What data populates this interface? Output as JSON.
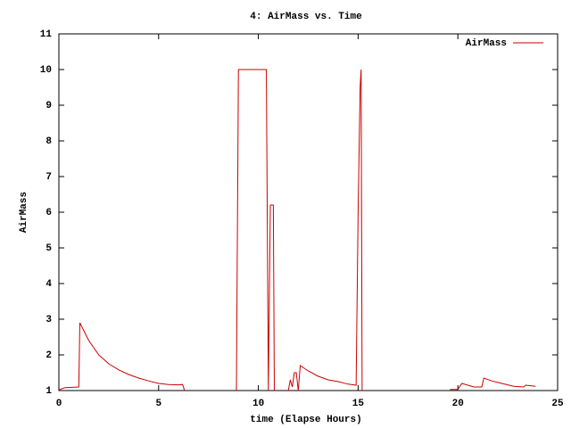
{
  "chart_data": {
    "type": "line",
    "title": "4: AirMass vs. Time",
    "x_label": "time (Elapse Hours)",
    "y_label": "AirMass",
    "xlim": [
      0,
      25
    ],
    "xticks": [
      0,
      5,
      10,
      15,
      20,
      25
    ],
    "ylim": [
      1,
      11
    ],
    "yticks": [
      1,
      2,
      3,
      4,
      5,
      6,
      7,
      8,
      9,
      10,
      11
    ],
    "legend": "top-right",
    "series": [
      {
        "name": "AirMass",
        "color": "#cc0000",
        "x": [
          0,
          0.3,
          1.0,
          1.05,
          1.5,
          2.0,
          2.5,
          3.0,
          3.5,
          4.0,
          4.5,
          5.0,
          5.5,
          6.0,
          6.2,
          6.3,
          null,
          8.9,
          8.95,
          9.0,
          9.5,
          10.0,
          10.4,
          10.5,
          10.6,
          10.65,
          10.75,
          10.8,
          null,
          11.5,
          11.6,
          11.7,
          11.8,
          11.9,
          12.0,
          12.1,
          12.5,
          13.0,
          13.5,
          14.0,
          14.5,
          14.9,
          15.0,
          15.1,
          15.15,
          15.2,
          null,
          19.6,
          20.0,
          20.2,
          20.5,
          20.8,
          21.2,
          21.3,
          21.7,
          22.2,
          22.8,
          23.3,
          23.4,
          23.9
        ],
        "values": [
          1.02,
          1.08,
          1.1,
          2.9,
          2.4,
          2.0,
          1.75,
          1.58,
          1.45,
          1.35,
          1.27,
          1.2,
          1.17,
          1.16,
          1.17,
          1.0,
          null,
          1.0,
          5.5,
          10.0,
          10.0,
          10.0,
          10.0,
          1.0,
          6.2,
          6.2,
          6.2,
          1.0,
          null,
          1.0,
          1.3,
          1.1,
          1.5,
          1.5,
          1.0,
          1.7,
          1.55,
          1.4,
          1.3,
          1.25,
          1.18,
          1.15,
          6.0,
          9.5,
          10.0,
          1.0,
          null,
          1.03,
          1.03,
          1.2,
          1.15,
          1.1,
          1.1,
          1.35,
          1.27,
          1.2,
          1.12,
          1.1,
          1.15,
          1.12
        ]
      }
    ]
  }
}
